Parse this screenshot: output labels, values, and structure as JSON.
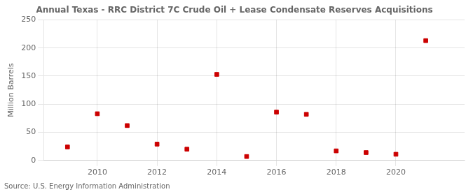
{
  "chart_data": {
    "type": "scatter",
    "title": "Annual Texas - RRC District 7C Crude Oil + Lease Condensate Reserves Acquisitions",
    "ylabel": "Million Barrels",
    "source": "Source: U.S. Energy Information Administration",
    "x": [
      2009,
      2010,
      2011,
      2012,
      2013,
      2014,
      2015,
      2016,
      2017,
      2018,
      2019,
      2020,
      2021
    ],
    "values": [
      24,
      83,
      62,
      29,
      20,
      153,
      7,
      86,
      82,
      17,
      14,
      11,
      213
    ],
    "color": "#cc0000",
    "marker": "square",
    "xlim": [
      2008.2,
      2022.3
    ],
    "xticks": [
      2010,
      2012,
      2014,
      2016,
      2018,
      2020
    ],
    "ylim": [
      0,
      250
    ],
    "yticks": [
      0,
      50,
      100,
      150,
      200,
      250
    ],
    "grid": true
  }
}
